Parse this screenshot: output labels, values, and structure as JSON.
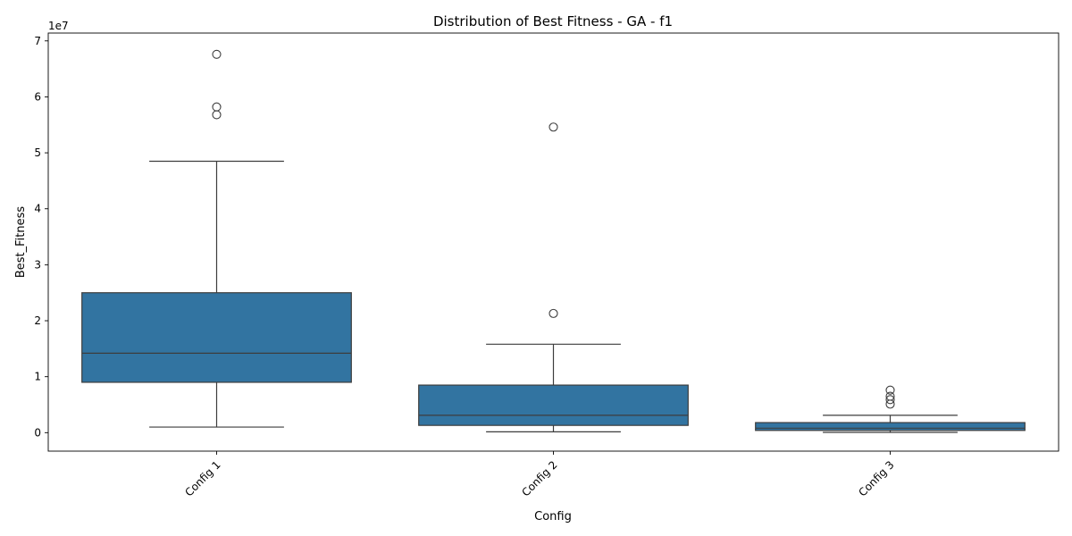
{
  "chart_data": {
    "type": "box",
    "title": "Distribution of Best Fitness - GA - f1",
    "xlabel": "Config",
    "ylabel": "Best_Fitness",
    "y_offset_label": "1e7",
    "y_tick_labels": [
      "0",
      "1",
      "2",
      "3",
      "4",
      "5",
      "6",
      "7"
    ],
    "y_tick_values": [
      0,
      10000000,
      20000000,
      30000000,
      40000000,
      50000000,
      60000000,
      70000000
    ],
    "ylim": [
      -3300000,
      71400000
    ],
    "x_tick_rotation_deg": -45,
    "grid": false,
    "legend": "none",
    "box_color": "#3274a1",
    "line_color": "#3d3d3d",
    "categories": [
      "Config 1",
      "Config 2",
      "Config 3"
    ],
    "boxes": [
      {
        "category": "Config 1",
        "whisker_low": 1000000,
        "q1": 9000000,
        "median": 14200000,
        "q3": 25000000,
        "whisker_high": 48500000,
        "outliers": [
          56800000,
          58200000,
          67600000
        ]
      },
      {
        "category": "Config 2",
        "whisker_low": 150000,
        "q1": 1300000,
        "median": 3100000,
        "q3": 8500000,
        "whisker_high": 15800000,
        "outliers": [
          21300000,
          54600000
        ]
      },
      {
        "category": "Config 3",
        "whisker_low": 50000,
        "q1": 400000,
        "median": 800000,
        "q3": 1800000,
        "whisker_high": 3100000,
        "outliers": [
          5100000,
          5900000,
          6500000,
          7600000
        ]
      }
    ]
  }
}
